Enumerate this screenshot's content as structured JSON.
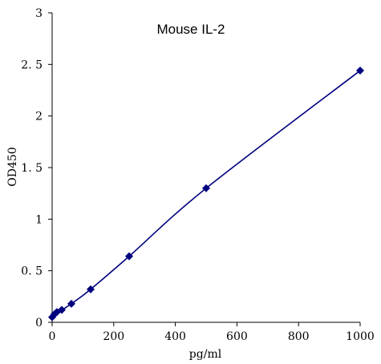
{
  "chart_data": {
    "type": "scatter",
    "title": "Mouse IL-2",
    "xlabel": "pg/ml",
    "ylabel": "OD450",
    "xlim": [
      0,
      1000
    ],
    "ylim": [
      0,
      3
    ],
    "xticks": [
      0,
      200,
      400,
      600,
      800,
      1000
    ],
    "yticks": [
      0,
      0.5,
      1,
      1.5,
      2,
      2.5,
      3
    ],
    "xtick_labels": [
      "0",
      "200",
      "400",
      "600",
      "800",
      "1000"
    ],
    "ytick_labels": [
      "0",
      "0. 5",
      "1",
      "1. 5",
      "2",
      "2. 5",
      "3"
    ],
    "grid": false,
    "legend": "none",
    "series": [
      {
        "x": [
          0,
          7.8,
          15.6,
          31.25,
          62.5,
          125,
          250,
          500,
          1000
        ],
        "y": [
          0.05,
          0.08,
          0.1,
          0.12,
          0.18,
          0.32,
          0.64,
          1.3,
          2.44
        ],
        "color": "#00007f",
        "marker": "diamond",
        "line": "smooth"
      }
    ]
  }
}
